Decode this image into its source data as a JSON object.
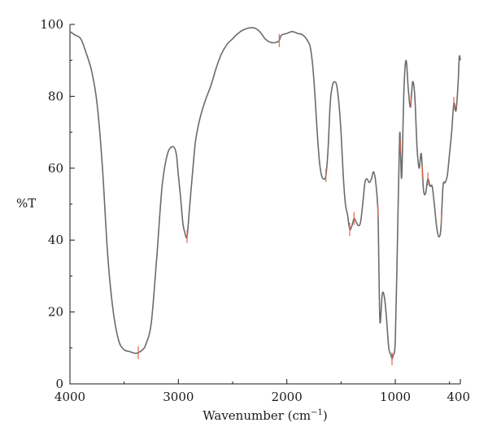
{
  "chart_data": {
    "type": "line",
    "title": "",
    "xlabel": "Wavenumber (cm",
    "xlabel_sup": "−1",
    "xlabel_close": ")",
    "ylabel": "%T",
    "xlim": [
      4000,
      400
    ],
    "ylim": [
      0,
      100
    ],
    "x_ticks": [
      4000,
      3000,
      2000,
      1000,
      400
    ],
    "y_ticks": [
      0,
      20,
      40,
      60,
      80,
      100
    ],
    "grid": false,
    "line_color": "#6b6b6b",
    "marker_color": "#e8614f",
    "series": [
      {
        "x": [
          4000,
          3950,
          3900,
          3850,
          3800,
          3750,
          3700,
          3650,
          3600,
          3550,
          3500,
          3450,
          3400,
          3370,
          3330,
          3300,
          3250,
          3200,
          3150,
          3100,
          3050,
          3020,
          3000,
          2980,
          2960,
          2940,
          2920,
          2900,
          2880,
          2860,
          2840,
          2800,
          2750,
          2700,
          2650,
          2600,
          2550,
          2500,
          2450,
          2400,
          2350,
          2300,
          2250,
          2200,
          2150,
          2100,
          2070,
          2050,
          2000,
          1950,
          1900,
          1850,
          1800,
          1780,
          1760,
          1740,
          1720,
          1700,
          1680,
          1660,
          1640,
          1620,
          1600,
          1580,
          1560,
          1540,
          1520,
          1500,
          1480,
          1460,
          1440,
          1420,
          1400,
          1380,
          1360,
          1340,
          1320,
          1300,
          1280,
          1260,
          1240,
          1220,
          1200,
          1180,
          1160,
          1150,
          1140,
          1120,
          1100,
          1080,
          1060,
          1040,
          1030,
          1020,
          1000,
          980,
          960,
          950,
          940,
          920,
          900,
          880,
          860,
          840,
          820,
          800,
          780,
          760,
          740,
          720,
          700,
          680,
          660,
          640,
          620,
          600,
          580,
          560,
          540,
          520,
          500,
          480,
          460,
          440,
          420,
          410,
          400
        ],
        "y": [
          98,
          97,
          96,
          92,
          87,
          78,
          60,
          35,
          20,
          12,
          9.5,
          9,
          8.5,
          8.7,
          9.5,
          11,
          17,
          35,
          55,
          64,
          66,
          64,
          58,
          52,
          45,
          42,
          41,
          48,
          55,
          62,
          68,
          74,
          79,
          83,
          88,
          92,
          94.5,
          96,
          97.5,
          98.5,
          99,
          99,
          98,
          96,
          95,
          95,
          95.5,
          97,
          97.5,
          98,
          97.5,
          97,
          95,
          93,
          88,
          80,
          70,
          62,
          58,
          57,
          58,
          65,
          78,
          83,
          84,
          83,
          78,
          70,
          58,
          50,
          47,
          43,
          44,
          46,
          45,
          44,
          45,
          50,
          56,
          57,
          56,
          57,
          59,
          56,
          48,
          30,
          17,
          25,
          24,
          18,
          10,
          8,
          7,
          8,
          12,
          40,
          69,
          63,
          58,
          82,
          90,
          82,
          77,
          84,
          80,
          66,
          60,
          64,
          54,
          53,
          57,
          55,
          55,
          50,
          44,
          41,
          43,
          55,
          56,
          58,
          64,
          70,
          78,
          76,
          84,
          91,
          90
        ]
      }
    ],
    "peak_markers": [
      3370,
      2920,
      2070,
      1640,
      1420,
      1380,
      1160,
      1030,
      955,
      855,
      750,
      700,
      575,
      460
    ]
  }
}
